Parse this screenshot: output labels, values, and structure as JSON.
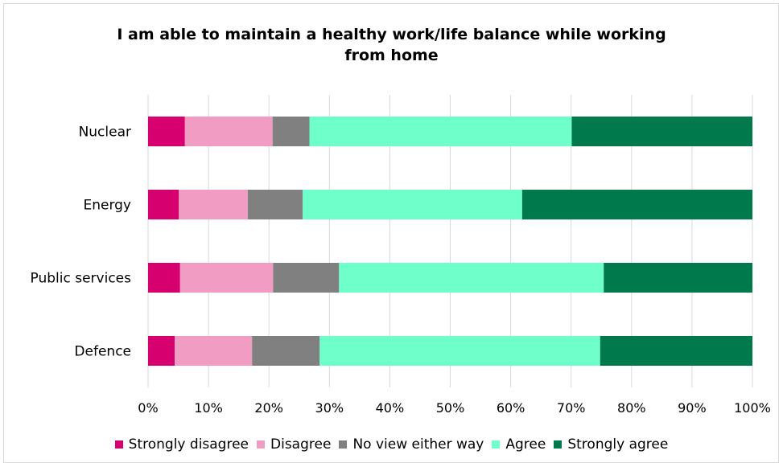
{
  "chart_data": {
    "type": "bar",
    "orientation": "horizontal",
    "stacked": "percent",
    "title_lines": [
      "I am able to maintain a healthy work/life balance while working",
      "from home"
    ],
    "categories": [
      "Nuclear",
      "Energy",
      "Public services",
      "Defence"
    ],
    "series": [
      {
        "name": "Strongly disagree",
        "color": "#d6006e",
        "values": [
          6.1,
          5.1,
          5.3,
          4.4
        ]
      },
      {
        "name": "Disagree",
        "color": "#f09cc3",
        "values": [
          14.5,
          11.4,
          15.4,
          12.8
        ]
      },
      {
        "name": "No view either way",
        "color": "#808080",
        "values": [
          6.1,
          9.1,
          10.9,
          11.2
        ]
      },
      {
        "name": "Agree",
        "color": "#6fffca",
        "values": [
          43.4,
          36.3,
          43.8,
          46.4
        ]
      },
      {
        "name": "Strongly agree",
        "color": "#007a4d",
        "values": [
          29.9,
          38.1,
          24.6,
          25.2
        ]
      }
    ],
    "x_ticks": [
      "0%",
      "10%",
      "20%",
      "30%",
      "40%",
      "50%",
      "60%",
      "70%",
      "80%",
      "90%",
      "100%"
    ],
    "xlim": [
      0,
      100
    ],
    "grid": "vertical",
    "legend_position": "bottom"
  }
}
